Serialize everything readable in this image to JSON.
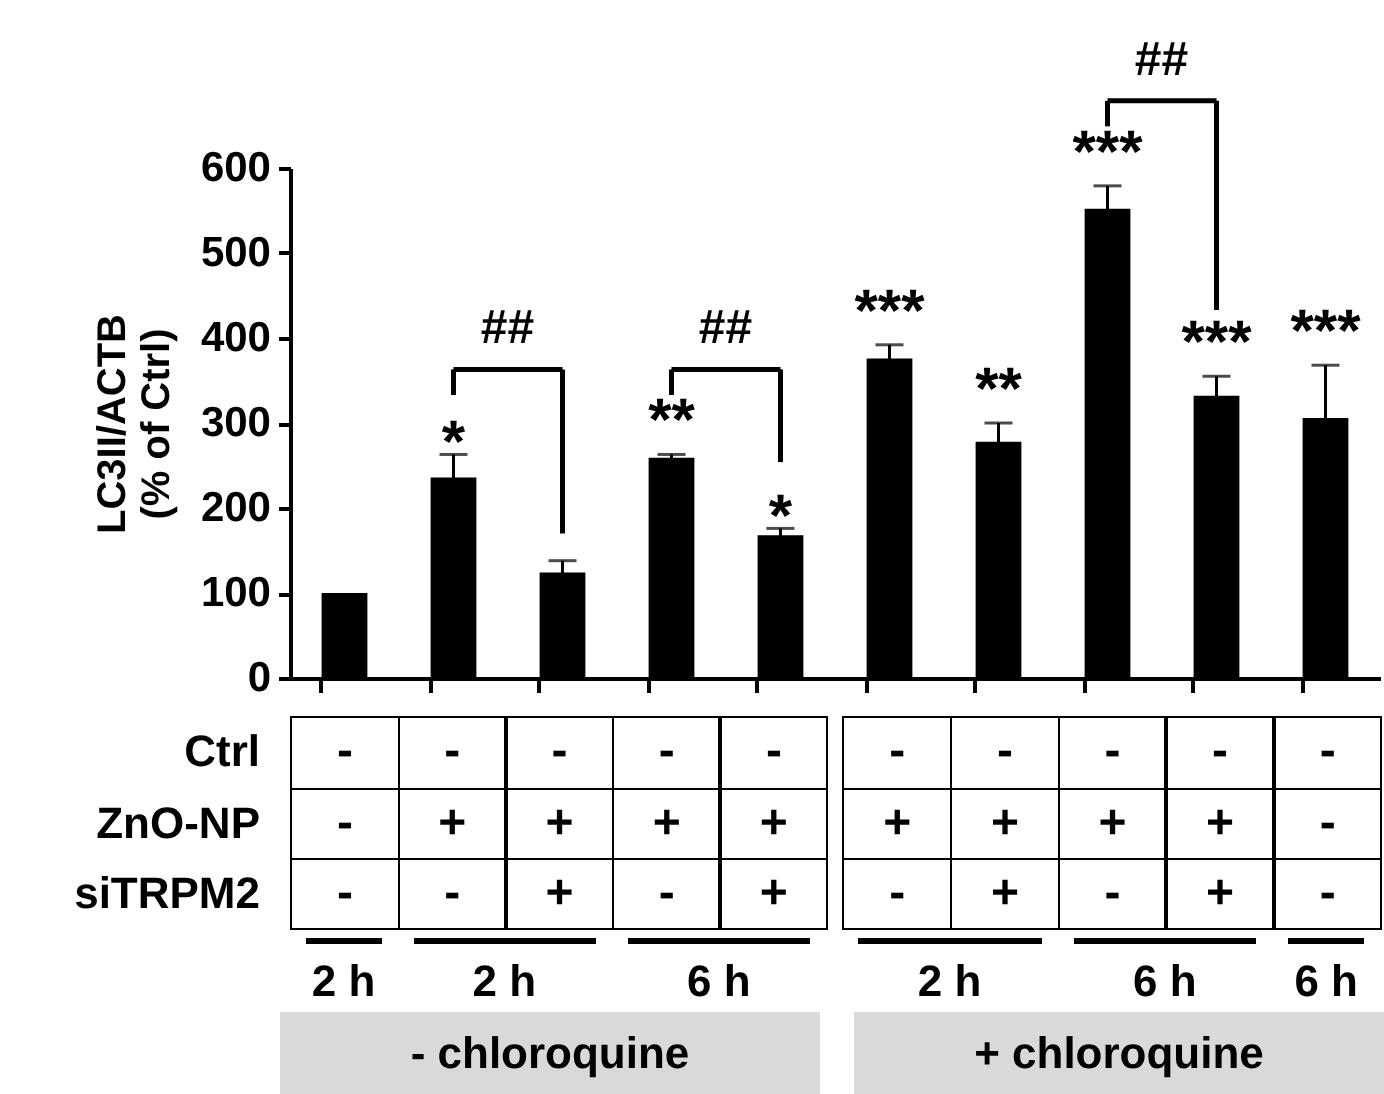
{
  "chart_data": {
    "type": "bar",
    "ylabel": "LC3II/ACTB\n(% of Ctrl)",
    "categories": [
      null,
      null,
      null,
      null,
      null,
      null,
      null,
      null,
      null,
      null
    ],
    "values": [
      100,
      236,
      124,
      259,
      168,
      376,
      278,
      552,
      332,
      306
    ],
    "errors": [
      null,
      27,
      14,
      4,
      8,
      16,
      22,
      27,
      23,
      62
    ],
    "color": "#000000",
    "ylim": [
      0,
      600
    ],
    "yticks": [
      0,
      100,
      200,
      300,
      400,
      500,
      600
    ],
    "grid": false,
    "tick_labels": "y",
    "annotations": [
      "*",
      "**",
      "*",
      "***",
      "**",
      "***",
      "***",
      "***",
      "##",
      "##",
      "##",
      "Ctrl",
      "ZnO-NP",
      "siTRPM2",
      "-",
      "-",
      "-",
      "-",
      "-",
      "-",
      "-",
      "-",
      "-",
      "-",
      "-",
      "+",
      "+",
      "+",
      "+",
      "+",
      "+",
      "+",
      "+",
      "-",
      "-",
      "-",
      "+",
      "-",
      "+",
      "-",
      "+",
      "-",
      "+",
      "-",
      "2 h",
      "2 h",
      "6 h",
      "2 h",
      "6 h",
      "6 h",
      "- chloroquine",
      "+ chloroquine"
    ]
  }
}
